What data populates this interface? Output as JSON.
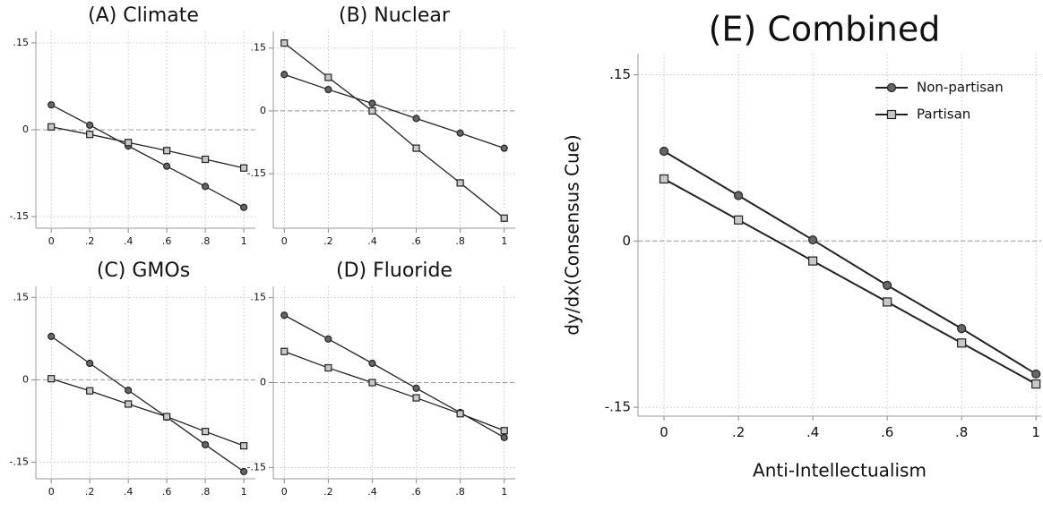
{
  "chart_data": [
    {
      "type": "line",
      "title": "(A) Climate",
      "x": [
        0,
        0.2,
        0.4,
        0.6,
        0.8,
        1
      ],
      "series": [
        {
          "color": "#222222",
          "marker": "circle",
          "marker_fill": "#666666",
          "values": [
            0.043,
            0.008,
            -0.028,
            -0.063,
            -0.098,
            -0.134
          ]
        },
        {
          "color": "#222222",
          "marker": "square",
          "marker_fill": "#c8c8c8",
          "values": [
            0.005,
            -0.008,
            -0.022,
            -0.036,
            -0.051,
            -0.066
          ]
        }
      ],
      "xlim": [
        -0.08,
        1.06
      ],
      "ylim": [
        -0.17,
        0.17
      ],
      "xticks": [
        0,
        {
          "value": 0.2,
          "label": ".2"
        },
        {
          "value": 0.4,
          "label": ".4"
        },
        {
          "value": 0.6,
          "label": ".6"
        },
        {
          "value": 0.8,
          "label": ".8"
        },
        1
      ],
      "yticks": [
        {
          "value": 0.15,
          "label": ".15"
        },
        0,
        {
          "value": -0.15,
          "label": "-.15"
        }
      ],
      "grid": true,
      "refline": 0
    },
    {
      "type": "line",
      "title": "(B) Nuclear",
      "x": [
        0,
        0.2,
        0.4,
        0.6,
        0.8,
        1
      ],
      "series": [
        {
          "color": "#222222",
          "marker": "circle",
          "marker_fill": "#666666",
          "values": [
            0.087,
            0.051,
            0.018,
            -0.018,
            -0.053,
            -0.089
          ]
        },
        {
          "color": "#222222",
          "marker": "square",
          "marker_fill": "#c8c8c8",
          "values": [
            0.162,
            0.08,
            0.0,
            -0.089,
            -0.172,
            -0.256
          ]
        }
      ],
      "xlim": [
        -0.05,
        1.05
      ],
      "ylim": [
        -0.28,
        0.19
      ],
      "xticks": [
        0,
        {
          "value": 0.2,
          "label": ".2"
        },
        {
          "value": 0.4,
          "label": ".4"
        },
        {
          "value": 0.6,
          "label": ".6"
        },
        {
          "value": 0.8,
          "label": ".8"
        },
        1
      ],
      "yticks": [
        {
          "value": 0.15,
          "label": ".15"
        },
        0,
        {
          "value": -0.15,
          "label": "-.15"
        }
      ],
      "grid": true,
      "refline": 0
    },
    {
      "type": "line",
      "title": "(C) GMOs",
      "x": [
        0,
        0.2,
        0.4,
        0.6,
        0.8,
        1
      ],
      "series": [
        {
          "color": "#222222",
          "marker": "circle",
          "marker_fill": "#666666",
          "values": [
            0.079,
            0.03,
            -0.019,
            -0.068,
            -0.118,
            -0.167
          ]
        },
        {
          "color": "#222222",
          "marker": "square",
          "marker_fill": "#c8c8c8",
          "values": [
            0.002,
            -0.02,
            -0.044,
            -0.067,
            -0.094,
            -0.12
          ]
        }
      ],
      "xlim": [
        -0.08,
        1.06
      ],
      "ylim": [
        -0.18,
        0.17
      ],
      "xticks": [
        0,
        {
          "value": 0.2,
          "label": ".2"
        },
        {
          "value": 0.4,
          "label": ".4"
        },
        {
          "value": 0.6,
          "label": ".6"
        },
        {
          "value": 0.8,
          "label": ".8"
        },
        1
      ],
      "yticks": [
        {
          "value": 0.15,
          "label": ".15"
        },
        0,
        {
          "value": -0.15,
          "label": "-.15"
        }
      ],
      "grid": true,
      "refline": 0
    },
    {
      "type": "line",
      "title": "(D) Fluoride",
      "x": [
        0,
        0.2,
        0.4,
        0.6,
        0.8,
        1
      ],
      "series": [
        {
          "color": "#222222",
          "marker": "circle",
          "marker_fill": "#666666",
          "values": [
            0.119,
            0.077,
            0.034,
            -0.01,
            -0.053,
            -0.097
          ]
        },
        {
          "color": "#222222",
          "marker": "square",
          "marker_fill": "#c8c8c8",
          "values": [
            0.055,
            0.026,
            0.0,
            -0.027,
            -0.055,
            -0.085
          ]
        }
      ],
      "xlim": [
        -0.05,
        1.05
      ],
      "ylim": [
        -0.17,
        0.17
      ],
      "xticks": [
        0,
        {
          "value": 0.2,
          "label": ".2"
        },
        {
          "value": 0.4,
          "label": ".4"
        },
        {
          "value": 0.6,
          "label": ".6"
        },
        {
          "value": 0.8,
          "label": ".8"
        },
        1
      ],
      "yticks": [
        {
          "value": 0.15,
          "label": ".15"
        },
        0,
        {
          "value": -0.15,
          "label": "-.15"
        }
      ],
      "grid": true,
      "refline": 0
    },
    {
      "type": "line",
      "title": "(E) Combined",
      "x_label": "Anti-Intellectualism",
      "y_label": "dy/dx(Consensus Cue)",
      "x": [
        0,
        0.2,
        0.4,
        0.6,
        0.8,
        1
      ],
      "series": [
        {
          "name": "Non-partisan",
          "color": "#222222",
          "marker": "circle",
          "marker_fill": "#666666",
          "values": [
            0.081,
            0.041,
            0.001,
            -0.04,
            -0.079,
            -0.12
          ]
        },
        {
          "name": "Partisan",
          "color": "#222222",
          "marker": "square",
          "marker_fill": "#c8c8c8",
          "values": [
            0.056,
            0.019,
            -0.018,
            -0.055,
            -0.092,
            -0.129
          ]
        }
      ],
      "xlim": [
        -0.07,
        1.014
      ],
      "ylim": [
        -0.158,
        0.169
      ],
      "xticks": [
        0,
        {
          "value": 0.2,
          "label": ".2"
        },
        {
          "value": 0.4,
          "label": ".4"
        },
        {
          "value": 0.6,
          "label": ".6"
        },
        {
          "value": 0.8,
          "label": ".8"
        },
        1
      ],
      "yticks": [
        {
          "value": 0.15,
          "label": ".15"
        },
        0,
        {
          "value": -0.15,
          "label": "-.15"
        }
      ],
      "grid": true,
      "refline": 0,
      "legend": "top-right"
    }
  ]
}
